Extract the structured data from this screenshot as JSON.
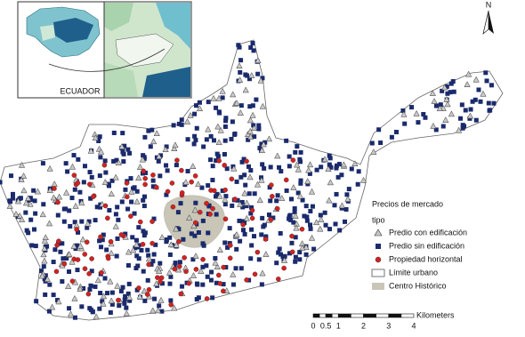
{
  "inset": {
    "label": "ECUADOR"
  },
  "north_arrow": {
    "label": "N"
  },
  "legend": {
    "title": "Precios de mercado",
    "subtitle": "tipo",
    "items": [
      "Predio con edificación",
      "Predio sin edificación",
      "Propiedad horizontal",
      "Límite urbano",
      "Centro Histórico"
    ]
  },
  "scale_bar": {
    "unit": "Kilometers",
    "ticks": [
      0,
      0.5,
      1,
      2,
      3,
      4
    ]
  }
}
